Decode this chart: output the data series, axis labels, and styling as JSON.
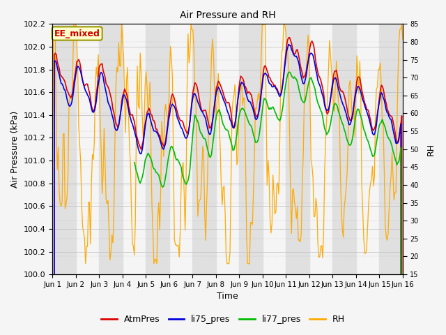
{
  "title": "Air Pressure and RH",
  "xlabel": "Time",
  "ylabel_left": "Air Pressure (kPa)",
  "ylabel_right": "RH",
  "ylim_left": [
    100.0,
    102.2
  ],
  "ylim_right": [
    15,
    85
  ],
  "yticks_left": [
    100.0,
    100.2,
    100.4,
    100.6,
    100.8,
    101.0,
    101.2,
    101.4,
    101.6,
    101.8,
    102.0,
    102.2
  ],
  "yticks_right": [
    15,
    20,
    25,
    30,
    35,
    40,
    45,
    50,
    55,
    60,
    65,
    70,
    75,
    80,
    85
  ],
  "xtick_labels": [
    "Jun 1",
    "Jun 2",
    "Jun 3",
    "Jun 4",
    "Jun 5",
    "Jun 6",
    "Jun 7",
    "Jun 8",
    "Jun 9",
    "Jun 10",
    "Jun 11",
    "Jun 12",
    "Jun 13",
    "Jun 14",
    "Jun 15",
    "Jun 16"
  ],
  "band_color": "#e0e0e0",
  "bg_color": "#f5f5f5",
  "series_colors": {
    "AtmPres": "#dd0000",
    "li75_pres": "#0000dd",
    "li77_pres": "#00bb00",
    "RH": "#ffaa00"
  },
  "ee_mixed_label": "EE_mixed",
  "ee_mixed_bg": "#ffffcc",
  "ee_mixed_border": "#999900",
  "ee_mixed_text_color": "#cc0000",
  "n_days": 15,
  "n_pts": 360
}
